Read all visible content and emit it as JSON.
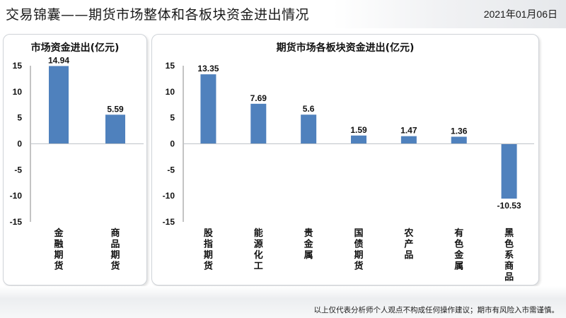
{
  "header": {
    "title": "交易锦囊——期货市场整体和各板块资金进出情况",
    "date": "2021年01月06日"
  },
  "footer": {
    "disclaimer": "以上仅代表分析师个人观点不构成任何操作建议；期市有风险入市需谨慎。"
  },
  "colors": {
    "bar": "#4f81bd",
    "axis": "#555555",
    "text": "#111111"
  },
  "chart_data": [
    {
      "type": "bar",
      "title": "市场资金进出(亿元)",
      "categories": [
        "金融期货",
        "商品期货"
      ],
      "values": [
        14.94,
        5.59
      ],
      "value_labels": [
        "14.94",
        "5.59"
      ],
      "ylim": [
        -15,
        15
      ],
      "yticks": [
        "15",
        "10",
        "5",
        "0",
        "-5",
        "-10",
        "-15"
      ],
      "xlabel": "",
      "ylabel": "",
      "grid": false,
      "legend": "none"
    },
    {
      "type": "bar",
      "title": "期货市场各板块资金进出(亿元)",
      "categories": [
        "股指期货",
        "能源化工",
        "贵金属",
        "国债期货",
        "农产品",
        "有色金属",
        "黑色系商品"
      ],
      "values": [
        13.35,
        7.69,
        5.6,
        1.59,
        1.47,
        1.36,
        -10.53
      ],
      "value_labels": [
        "13.35",
        "7.69",
        "5.6",
        "1.59",
        "1.47",
        "1.36",
        "-10.53"
      ],
      "ylim": [
        -15,
        15
      ],
      "yticks": [
        "15",
        "10",
        "5",
        "0",
        "-5",
        "-10",
        "-15"
      ],
      "xlabel": "",
      "ylabel": "",
      "grid": false,
      "legend": "none"
    }
  ]
}
